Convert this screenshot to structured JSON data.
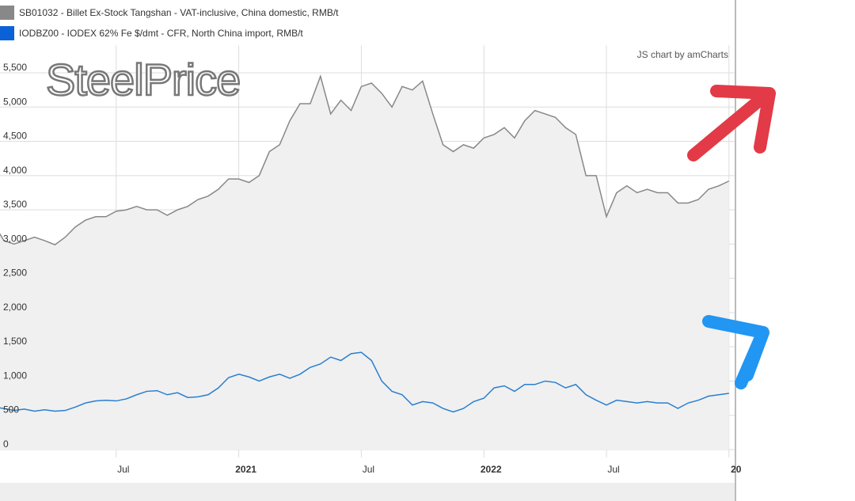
{
  "chart_data": {
    "type": "line",
    "watermark": "SteelPrice",
    "credit": "JS chart by amCharts",
    "categories": [
      null,
      null,
      null,
      null,
      null,
      null,
      null,
      null,
      null,
      null,
      null,
      null,
      "Jul",
      null,
      null,
      null,
      null,
      null,
      null,
      null,
      null,
      null,
      null,
      null,
      "2021",
      null,
      null,
      null,
      null,
      null,
      null,
      null,
      null,
      null,
      null,
      null,
      "Jul",
      null,
      null,
      null,
      null,
      null,
      null,
      null,
      null,
      null,
      null,
      null,
      "2022",
      null,
      null,
      null,
      null,
      null,
      null,
      null,
      null,
      null,
      null,
      null,
      "Jul",
      null,
      null,
      null,
      null,
      null,
      null,
      null,
      null,
      null,
      null,
      null,
      "20"
    ],
    "series": [
      {
        "name": "SB01032 - Billet Ex-Stock Tangshan - VAT-inclusive, China domestic, RMB/t",
        "color": "#888888",
        "area": true,
        "values": [
          3300,
          3050,
          3000,
          3050,
          3100,
          3050,
          2990,
          3100,
          3250,
          3350,
          3400,
          3400,
          3480,
          3500,
          3550,
          3500,
          3500,
          3420,
          3500,
          3550,
          3650,
          3700,
          3800,
          3950,
          3950,
          3900,
          4000,
          4350,
          4450,
          4800,
          5050,
          5050,
          5450,
          4900,
          5100,
          4950,
          5300,
          5350,
          5200,
          5000,
          5300,
          5250,
          5380,
          4900,
          4450,
          4350,
          4450,
          4400,
          4550,
          4600,
          4700,
          4550,
          4800,
          4950,
          4900,
          4850,
          4700,
          4600,
          4000,
          4000,
          3400,
          3750,
          3850,
          3750,
          3800,
          3750,
          3750,
          3600,
          3600,
          3650,
          3800,
          3850,
          3920
        ]
      },
      {
        "name": "IODBZ00 - IODEX 62% Fe $/dmt - CFR, North China import, RMB/t",
        "color": "#2a7fd0",
        "values": [
          620,
          600,
          570,
          590,
          560,
          580,
          560,
          570,
          620,
          680,
          710,
          720,
          710,
          740,
          800,
          850,
          860,
          800,
          830,
          760,
          770,
          800,
          900,
          1050,
          1100,
          1060,
          1000,
          1060,
          1100,
          1040,
          1100,
          1200,
          1250,
          1350,
          1300,
          1400,
          1420,
          1300,
          1000,
          850,
          800,
          650,
          700,
          680,
          600,
          550,
          600,
          700,
          750,
          900,
          930,
          850,
          950,
          950,
          1000,
          980,
          900,
          950,
          800,
          720,
          650,
          720,
          700,
          680,
          700,
          680,
          680,
          600,
          680,
          720,
          780,
          800,
          820
        ]
      }
    ],
    "ylim": [
      0,
      5900
    ],
    "yticks": [
      0,
      500,
      {
        "value": 1000,
        "label": "1,000"
      },
      {
        "value": 1500,
        "label": "1,500"
      },
      {
        "value": 2000,
        "label": "2,000"
      },
      {
        "value": 2500,
        "label": "2,500"
      },
      {
        "value": 3000,
        "label": "3,000"
      },
      {
        "value": 3500,
        "label": "3,500"
      },
      {
        "value": 4000,
        "label": "4,000"
      },
      {
        "value": 4500,
        "label": "4,500"
      },
      {
        "value": 5000,
        "label": "5,000"
      },
      {
        "value": 5500,
        "label": "5,500"
      }
    ],
    "grid": true
  }
}
